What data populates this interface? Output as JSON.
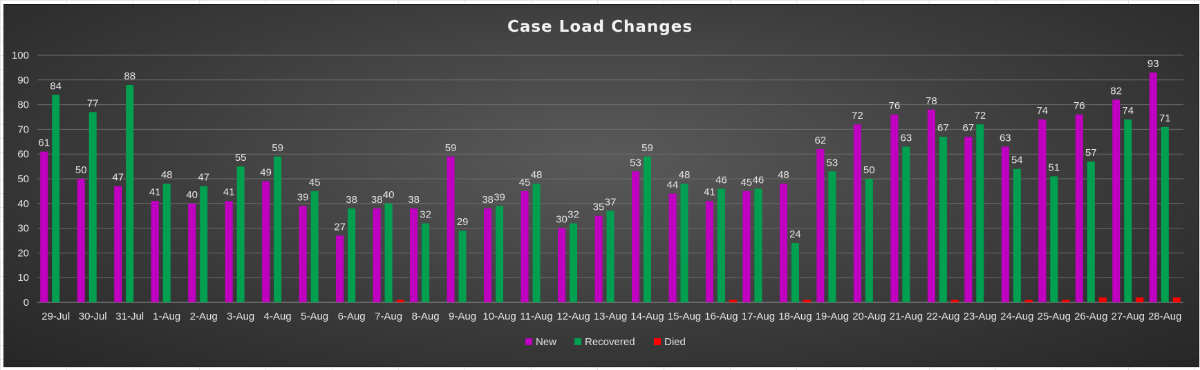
{
  "chart_data": {
    "type": "bar",
    "title": "Case Load Changes",
    "xlabel": "",
    "ylabel": "",
    "ylim": [
      0,
      100
    ],
    "yticks": [
      0,
      10,
      20,
      30,
      40,
      50,
      60,
      70,
      80,
      90,
      100
    ],
    "grid": true,
    "legend_position": "bottom",
    "categories": [
      "29-Jul",
      "30-Jul",
      "31-Jul",
      "1-Aug",
      "2-Aug",
      "3-Aug",
      "4-Aug",
      "5-Aug",
      "6-Aug",
      "7-Aug",
      "8-Aug",
      "9-Aug",
      "10-Aug",
      "11-Aug",
      "12-Aug",
      "13-Aug",
      "14-Aug",
      "15-Aug",
      "16-Aug",
      "17-Aug",
      "18-Aug",
      "19-Aug",
      "20-Aug",
      "21-Aug",
      "22-Aug",
      "23-Aug",
      "24-Aug",
      "25-Aug",
      "26-Aug",
      "27-Aug",
      "28-Aug"
    ],
    "series": [
      {
        "name": "New",
        "color": "#c000c0",
        "values": [
          61,
          50,
          47,
          41,
          40,
          41,
          49,
          39,
          27,
          38,
          38,
          59,
          38,
          45,
          30,
          35,
          53,
          44,
          41,
          45,
          48,
          62,
          72,
          76,
          78,
          67,
          63,
          74,
          76,
          82,
          93
        ]
      },
      {
        "name": "Recovered",
        "color": "#00a050",
        "values": [
          84,
          77,
          88,
          48,
          47,
          55,
          59,
          45,
          38,
          40,
          32,
          29,
          39,
          48,
          32,
          37,
          59,
          48,
          46,
          46,
          24,
          53,
          50,
          63,
          67,
          72,
          54,
          51,
          57,
          74,
          71
        ]
      },
      {
        "name": "Died",
        "color": "#ff0000",
        "values": [
          0,
          0,
          0,
          0,
          0,
          0,
          0,
          0,
          0,
          1,
          0,
          0,
          0,
          0,
          0,
          0,
          0,
          0,
          1,
          0,
          1,
          0,
          0,
          0,
          1,
          0,
          1,
          1,
          2,
          2,
          2
        ]
      }
    ]
  }
}
